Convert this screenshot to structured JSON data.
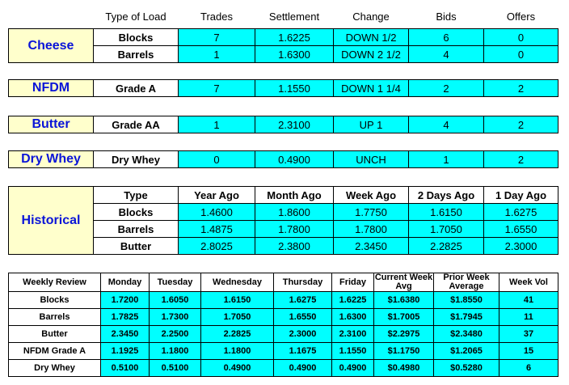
{
  "columns": [
    "Type of Load",
    "Trades",
    "Settlement",
    "Change",
    "Bids",
    "Offers"
  ],
  "products": [
    {
      "name": "Cheese",
      "rows": [
        [
          "Blocks",
          "7",
          "1.6225",
          "DOWN 1/2",
          "6",
          "0"
        ],
        [
          "Barrels",
          "1",
          "1.6300",
          "DOWN 2 1/2",
          "4",
          "0"
        ]
      ]
    },
    {
      "name": "NFDM",
      "rows": [
        [
          "Grade A",
          "7",
          "1.1550",
          "DOWN 1 1/4",
          "2",
          "2"
        ]
      ]
    },
    {
      "name": "Butter",
      "rows": [
        [
          "Grade AA",
          "1",
          "2.3100",
          "UP 1",
          "4",
          "2"
        ]
      ]
    },
    {
      "name": "Dry Whey",
      "rows": [
        [
          "Dry Whey",
          "0",
          "0.4900",
          "UNCH",
          "1",
          "2"
        ]
      ]
    }
  ],
  "historical": {
    "title": "Historical",
    "columns": [
      "Type",
      "Year Ago",
      "Month Ago",
      "Week Ago",
      "2 Days Ago",
      "1 Day Ago"
    ],
    "rows": [
      [
        "Blocks",
        "1.4600",
        "1.8600",
        "1.7750",
        "1.6150",
        "1.6275"
      ],
      [
        "Barrels",
        "1.4875",
        "1.7800",
        "1.7800",
        "1.7050",
        "1.6550"
      ],
      [
        "Butter",
        "2.8025",
        "2.3800",
        "2.3450",
        "2.2825",
        "2.3000"
      ]
    ]
  },
  "weekly": {
    "columns": [
      "Weekly Review",
      "Monday",
      "Tuesday",
      "Wednesday",
      "Thursday",
      "Friday",
      "Current Week Avg",
      "Prior Week Average",
      "Week Vol"
    ],
    "rows": [
      [
        "Blocks",
        "1.7200",
        "1.6050",
        "1.6150",
        "1.6275",
        "1.6225",
        "$1.6380",
        "$1.8550",
        "41"
      ],
      [
        "Barrels",
        "1.7825",
        "1.7300",
        "1.7050",
        "1.6550",
        "1.6300",
        "$1.7005",
        "$1.7945",
        "11"
      ],
      [
        "Butter",
        "2.3450",
        "2.2500",
        "2.2825",
        "2.3000",
        "2.3100",
        "$2.2975",
        "$2.3480",
        "37"
      ],
      [
        "NFDM Grade A",
        "1.1925",
        "1.1800",
        "1.1800",
        "1.1675",
        "1.1550",
        "$1.1750",
        "$1.2065",
        "15"
      ],
      [
        "Dry Whey",
        "0.5100",
        "0.5100",
        "0.4900",
        "0.4900",
        "0.4900",
        "$0.4980",
        "$0.5280",
        "6"
      ]
    ]
  }
}
